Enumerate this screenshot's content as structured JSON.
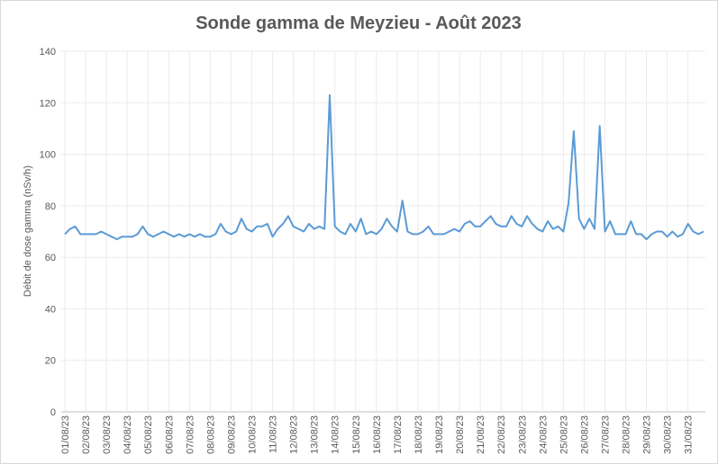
{
  "chart_data": {
    "type": "line",
    "title": "Sonde gamma de Meyzieu - Août 2023",
    "y_label": "Débit de dose gamma (nSv/h)",
    "categories": [
      "01/08/23",
      null,
      null,
      null,
      "02/08/23",
      null,
      null,
      null,
      "03/08/23",
      null,
      null,
      null,
      "04/08/23",
      null,
      null,
      null,
      "05/08/23",
      null,
      null,
      null,
      "06/08/23",
      null,
      null,
      null,
      "07/08/23",
      null,
      null,
      null,
      "08/08/23",
      null,
      null,
      null,
      "09/08/23",
      null,
      null,
      null,
      "10/08/23",
      null,
      null,
      null,
      "11/08/23",
      null,
      null,
      null,
      "12/08/23",
      null,
      null,
      null,
      "13/08/23",
      null,
      null,
      null,
      "14/08/23",
      null,
      null,
      null,
      "15/08/23",
      null,
      null,
      null,
      "16/08/23",
      null,
      null,
      null,
      "17/08/23",
      null,
      null,
      null,
      "18/08/23",
      null,
      null,
      null,
      "19/08/23",
      null,
      null,
      null,
      "20/08/23",
      null,
      null,
      null,
      "21/08/23",
      null,
      null,
      null,
      "22/08/23",
      null,
      null,
      null,
      "23/08/23",
      null,
      null,
      null,
      "24/08/23",
      null,
      null,
      null,
      "25/08/23",
      null,
      null,
      null,
      "26/08/23",
      null,
      null,
      null,
      "27/08/23",
      null,
      null,
      null,
      "28/08/23",
      null,
      null,
      null,
      "29/08/23",
      null,
      null,
      null,
      "30/08/23",
      null,
      null,
      null,
      "31/08/23",
      null,
      null,
      null
    ],
    "values": [
      69,
      71,
      72,
      69,
      69,
      69,
      69,
      70,
      69,
      68,
      67,
      68,
      68,
      68,
      69,
      72,
      69,
      68,
      69,
      70,
      69,
      68,
      69,
      68,
      69,
      68,
      69,
      68,
      68,
      69,
      73,
      70,
      69,
      70,
      75,
      71,
      70,
      72,
      72,
      73,
      68,
      71,
      73,
      76,
      72,
      71,
      70,
      73,
      71,
      72,
      71,
      123,
      72,
      70,
      69,
      73,
      70,
      75,
      69,
      70,
      69,
      71,
      75,
      72,
      70,
      82,
      70,
      69,
      69,
      70,
      72,
      69,
      69,
      69,
      70,
      71,
      70,
      73,
      74,
      72,
      72,
      74,
      76,
      73,
      72,
      72,
      76,
      73,
      72,
      76,
      73,
      71,
      70,
      74,
      71,
      72,
      70,
      81,
      109,
      75,
      71,
      75,
      71,
      111,
      70,
      74,
      69,
      69,
      69,
      74,
      69,
      69,
      67,
      69,
      70,
      70,
      68,
      70,
      68,
      69,
      73,
      70,
      69,
      70
    ],
    "color": "#5b9bd5",
    "ylim": [
      0,
      140
    ],
    "yticks": [
      0,
      20,
      40,
      60,
      80,
      100,
      120,
      140
    ],
    "grid": true
  }
}
